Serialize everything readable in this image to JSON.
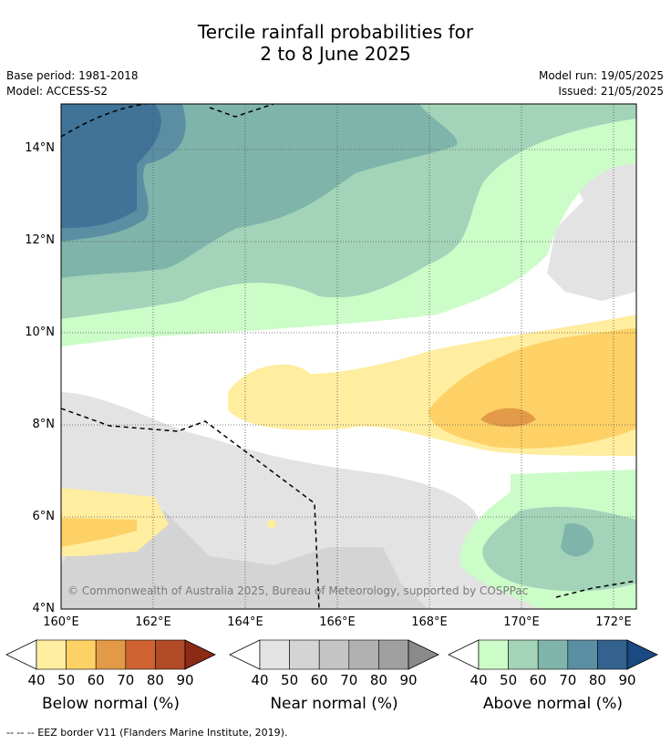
{
  "title": {
    "line1": "Tercile rainfall probabilities for",
    "line2": "2 to 8 June 2025"
  },
  "meta": {
    "base_period": "Base period: 1981-2018",
    "model": "Model: ACCESS-S2",
    "model_run": "Model run: 19/05/2025",
    "issued": "Issued: 21/05/2025"
  },
  "map": {
    "lat_labels": [
      "14°N",
      "12°N",
      "10°N",
      "8°N",
      "6°N",
      "4°N"
    ],
    "lon_labels": [
      "160°E",
      "162°E",
      "164°E",
      "166°E",
      "168°E",
      "170°E",
      "172°E"
    ],
    "credit": "© Commonwealth of Australia 2025, Bureau of Meteorology, supported by COSPPac"
  },
  "legends": {
    "ticks": [
      "40",
      "50",
      "60",
      "70",
      "80",
      "90"
    ],
    "below": {
      "title": "Below normal (%)",
      "colors": [
        "#ffeda0",
        "#fed166",
        "#e29a48",
        "#cf6331",
        "#b04a27",
        "#8b2a15"
      ]
    },
    "near": {
      "title": "Near normal (%)",
      "colors": [
        "#e3e3e3",
        "#d4d4d4",
        "#c4c4c4",
        "#b1b1b1",
        "#a0a0a0",
        "#8a8a8a"
      ]
    },
    "above": {
      "title": "Above normal (%)",
      "colors": [
        "#ccfcc8",
        "#a3d4b9",
        "#7fb4aa",
        "#5a8ea3",
        "#33628f",
        "#1b4a82"
      ]
    }
  },
  "footnote": "--  --  -- EEZ border V11 (Flanders Marine Institute, 2019)."
}
